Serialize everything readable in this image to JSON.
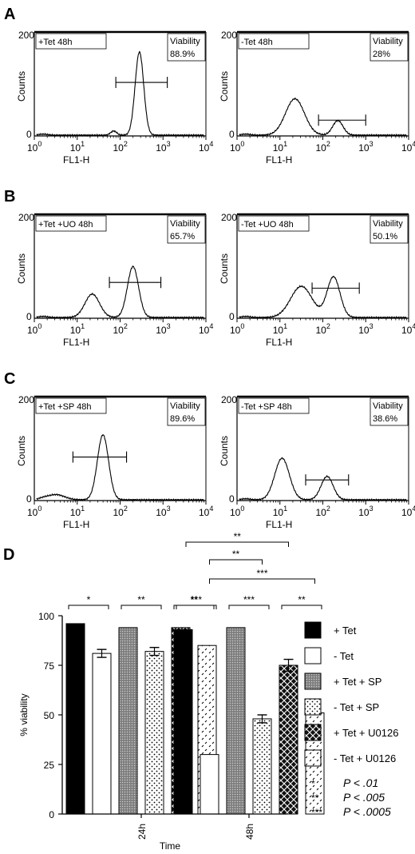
{
  "histograms": {
    "ylabel": "Counts",
    "xlabel": "FL1-H",
    "y_ticks": [
      "0",
      "200"
    ],
    "x_ticks_exponents": [
      "0",
      "1",
      "2",
      "3",
      "4"
    ],
    "x_tick_base": "10",
    "viability_label": "Viability",
    "panels": [
      {
        "letter": "A",
        "condition": "+Tet 48h",
        "viability": "88.9%",
        "gate": [
          1.9,
          3.1
        ],
        "peaks": [
          {
            "mu": 2.45,
            "sigma": 0.1,
            "h": 160
          },
          {
            "mu": 1.85,
            "sigma": 0.07,
            "h": 8
          }
        ]
      },
      {
        "letter": "",
        "condition": "-Tet 48h",
        "viability": "28%",
        "gate": [
          1.9,
          3.0
        ],
        "peaks": [
          {
            "mu": 1.35,
            "sigma": 0.22,
            "h": 70
          },
          {
            "mu": 2.35,
            "sigma": 0.12,
            "h": 28
          }
        ]
      },
      {
        "letter": "B",
        "condition": "+Tet +UO 48h",
        "viability": "65.7%",
        "gate": [
          1.75,
          2.95
        ],
        "peaks": [
          {
            "mu": 1.35,
            "sigma": 0.17,
            "h": 45
          },
          {
            "mu": 2.3,
            "sigma": 0.13,
            "h": 98
          }
        ]
      },
      {
        "letter": "",
        "condition": "-Tet +UO 48h",
        "viability": "50.1%",
        "gate": [
          1.75,
          2.85
        ],
        "peaks": [
          {
            "mu": 1.5,
            "sigma": 0.25,
            "h": 60
          },
          {
            "mu": 2.25,
            "sigma": 0.15,
            "h": 78
          }
        ]
      },
      {
        "letter": "C",
        "condition": "+Tet +SP 48h",
        "viability": "89.6%",
        "gate": [
          0.9,
          2.15
        ],
        "peaks": [
          {
            "mu": 1.6,
            "sigma": 0.13,
            "h": 125
          },
          {
            "mu": 0.5,
            "sigma": 0.2,
            "h": 10
          }
        ]
      },
      {
        "letter": "",
        "condition": "-Tet +SP 48h",
        "viability": "38.6%",
        "gate": [
          1.6,
          2.6
        ],
        "peaks": [
          {
            "mu": 1.05,
            "sigma": 0.17,
            "h": 80
          },
          {
            "mu": 2.1,
            "sigma": 0.14,
            "h": 45
          }
        ]
      }
    ]
  },
  "chart_data": {
    "type": "bar",
    "panel_letter": "D",
    "xlabel": "Time",
    "ylabel": "% viability",
    "ylim": [
      0,
      100
    ],
    "y_ticks": [
      0,
      25,
      50,
      75,
      100
    ],
    "categories": [
      "24h",
      "48h"
    ],
    "series": [
      {
        "name": "+ Tet",
        "pattern": "solid-black",
        "values": [
          96,
          93
        ],
        "errors": [
          0,
          0
        ]
      },
      {
        "name": "- Tet",
        "pattern": "white",
        "values": [
          81,
          30
        ],
        "errors": [
          2,
          0
        ]
      },
      {
        "name": "+ Tet + SP",
        "pattern": "grey-hatch",
        "values": [
          94,
          94
        ],
        "errors": [
          0,
          0
        ]
      },
      {
        "name": "- Tet + SP",
        "pattern": "dots",
        "values": [
          82,
          48
        ],
        "errors": [
          2,
          2
        ]
      },
      {
        "name": "+ Tet + U0126",
        "pattern": "black-check",
        "values": [
          94,
          75
        ],
        "errors": [
          0,
          3
        ]
      },
      {
        "name": "-  Tet + U0126",
        "pattern": "dashes",
        "values": [
          85,
          51
        ],
        "errors": [
          0,
          0
        ]
      }
    ],
    "significance_brackets": [
      {
        "from": 0,
        "to": 1,
        "group": 0,
        "label": "*"
      },
      {
        "from": 2,
        "to": 3,
        "group": 0,
        "label": "**"
      },
      {
        "from": 4,
        "to": 5,
        "group": 0,
        "label": "**"
      },
      {
        "from": 0,
        "to": 1,
        "group": 1,
        "label": "***"
      },
      {
        "from": 2,
        "to": 3,
        "group": 1,
        "label": "***"
      },
      {
        "from": 4,
        "to": 5,
        "group": 1,
        "label": "**"
      }
    ],
    "comparison_brackets": [
      {
        "from": 1,
        "to": 5,
        "label": "***"
      },
      {
        "from": 1,
        "to": 3,
        "label": "**"
      },
      {
        "from": 0,
        "to": 4,
        "label": "**"
      }
    ],
    "pvalue_legend": [
      {
        "stars": "*",
        "text": "P < .01"
      },
      {
        "stars": "**",
        "text": "P < .005"
      },
      {
        "stars": "***",
        "text": "P < .0005"
      }
    ]
  }
}
